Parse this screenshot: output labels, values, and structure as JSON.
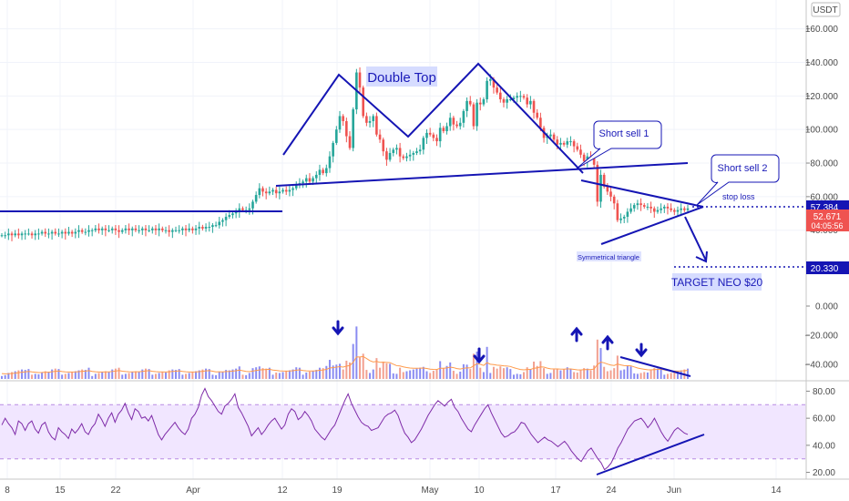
{
  "header": {
    "currency": "USDT"
  },
  "chart_data": [
    {
      "type": "candlestick",
      "ylim": [
        10,
        175
      ],
      "y_ticks": [
        "160.000",
        "140.000",
        "120.000",
        "100.000",
        "80.000",
        "60.000",
        "40.000"
      ],
      "x_ticks": [
        "8",
        "15",
        "22",
        "Apr",
        "12",
        "19",
        "May",
        "10",
        "17",
        "24",
        "Jun",
        "14"
      ],
      "last_price": 52.671,
      "countdown": "04:05:56",
      "price_lines": [
        {
          "label": "57.384",
          "value": 57.384,
          "name": "stop loss"
        },
        {
          "label": "20.330",
          "value": 20.33,
          "name": "TARGET NEO $20"
        }
      ],
      "annotations": {
        "pattern_title": "Double Top",
        "short_sell_1": "Short sell 1",
        "short_sell_2": "Short sell 2",
        "stop_loss": "stop loss",
        "symmetrical_triangle": "Symmetrical triangle",
        "target": "TARGET NEO $20"
      },
      "price_series": [
        37,
        37,
        38,
        37,
        38,
        37,
        38,
        38,
        38,
        37,
        38,
        38,
        39,
        38,
        38,
        39,
        38,
        38,
        39,
        38,
        39,
        38,
        39,
        40,
        39,
        39,
        40,
        40,
        41,
        40,
        41,
        40,
        40,
        41,
        40,
        39,
        40,
        41,
        40,
        41,
        40,
        40,
        41,
        40,
        40,
        41,
        40,
        41,
        40,
        40,
        39,
        40,
        40,
        40,
        41,
        40,
        41,
        40,
        41,
        42,
        41,
        42,
        42,
        43,
        43,
        45,
        46,
        48,
        49,
        50,
        51,
        53,
        52,
        52,
        53,
        57,
        61,
        65,
        63,
        62,
        63,
        64,
        62,
        63,
        64,
        63,
        64,
        65,
        67,
        68,
        69,
        71,
        69,
        71,
        73,
        76,
        74,
        77,
        84,
        92,
        100,
        108,
        105,
        96,
        89,
        112,
        134,
        125,
        108,
        104,
        105,
        108,
        97,
        94,
        87,
        82,
        86,
        88,
        89,
        84,
        83,
        84,
        85,
        86,
        87,
        88,
        95,
        98,
        97,
        95,
        93,
        101,
        99,
        102,
        107,
        103,
        102,
        104,
        111,
        117,
        115,
        102,
        116,
        115,
        118,
        129,
        130,
        125,
        122,
        118,
        116,
        118,
        118,
        119,
        120,
        120,
        119,
        115,
        117,
        110,
        107,
        101,
        95,
        96,
        97,
        94,
        91,
        92,
        91,
        93,
        93,
        90,
        88,
        85,
        81,
        84,
        83,
        79,
        57,
        73,
        66,
        63,
        60,
        56,
        46,
        47,
        48,
        51,
        53,
        55,
        56,
        55,
        54,
        54,
        53,
        51,
        52,
        53,
        54,
        53,
        52,
        51,
        52,
        53,
        52,
        53
      ]
    },
    {
      "type": "bar",
      "name": "volume",
      "ylim": [
        -50,
        15
      ],
      "y_ticks": [
        "0.000",
        "−20.000",
        "−40.000"
      ]
    },
    {
      "type": "line",
      "name": "rsi",
      "ylim": [
        15,
        85
      ],
      "y_ticks": [
        "80.00",
        "60.00",
        "40.00",
        "20.00"
      ],
      "band": [
        30,
        70
      ],
      "values": [
        55,
        60,
        56,
        53,
        48,
        58,
        56,
        51,
        56,
        58,
        52,
        49,
        55,
        57,
        50,
        46,
        44,
        53,
        50,
        48,
        45,
        52,
        49,
        52,
        56,
        50,
        48,
        53,
        56,
        63,
        59,
        54,
        60,
        64,
        57,
        63,
        66,
        71,
        64,
        59,
        67,
        65,
        60,
        61,
        58,
        62,
        55,
        48,
        44,
        48,
        51,
        54,
        57,
        53,
        50,
        48,
        52,
        60,
        63,
        68,
        77,
        82,
        76,
        73,
        69,
        65,
        63,
        69,
        71,
        74,
        78,
        68,
        64,
        59,
        54,
        47,
        50,
        53,
        48,
        51,
        55,
        58,
        60,
        56,
        52,
        55,
        63,
        67,
        65,
        59,
        61,
        65,
        62,
        58,
        52,
        49,
        46,
        44,
        48,
        52,
        55,
        61,
        67,
        73,
        78,
        71,
        66,
        61,
        57,
        55,
        54,
        51,
        52,
        53,
        57,
        61,
        63,
        64,
        66,
        62,
        55,
        49,
        46,
        42,
        44,
        48,
        52,
        57,
        62,
        66,
        70,
        73,
        71,
        69,
        72,
        74,
        68,
        65,
        60,
        56,
        52,
        50,
        55,
        59,
        63,
        67,
        70,
        64,
        59,
        54,
        49,
        46,
        47,
        49,
        50,
        53,
        57,
        56,
        52,
        48,
        45,
        42,
        44,
        46,
        44,
        43,
        41,
        39,
        41,
        43,
        40,
        36,
        33,
        30,
        28,
        32,
        36,
        38,
        34,
        30,
        27,
        22,
        24,
        27,
        32,
        38,
        42,
        47,
        52,
        55,
        58,
        59,
        60,
        57,
        53,
        56,
        60,
        55,
        50,
        46,
        43,
        47,
        51,
        53,
        51,
        49,
        48
      ]
    }
  ]
}
